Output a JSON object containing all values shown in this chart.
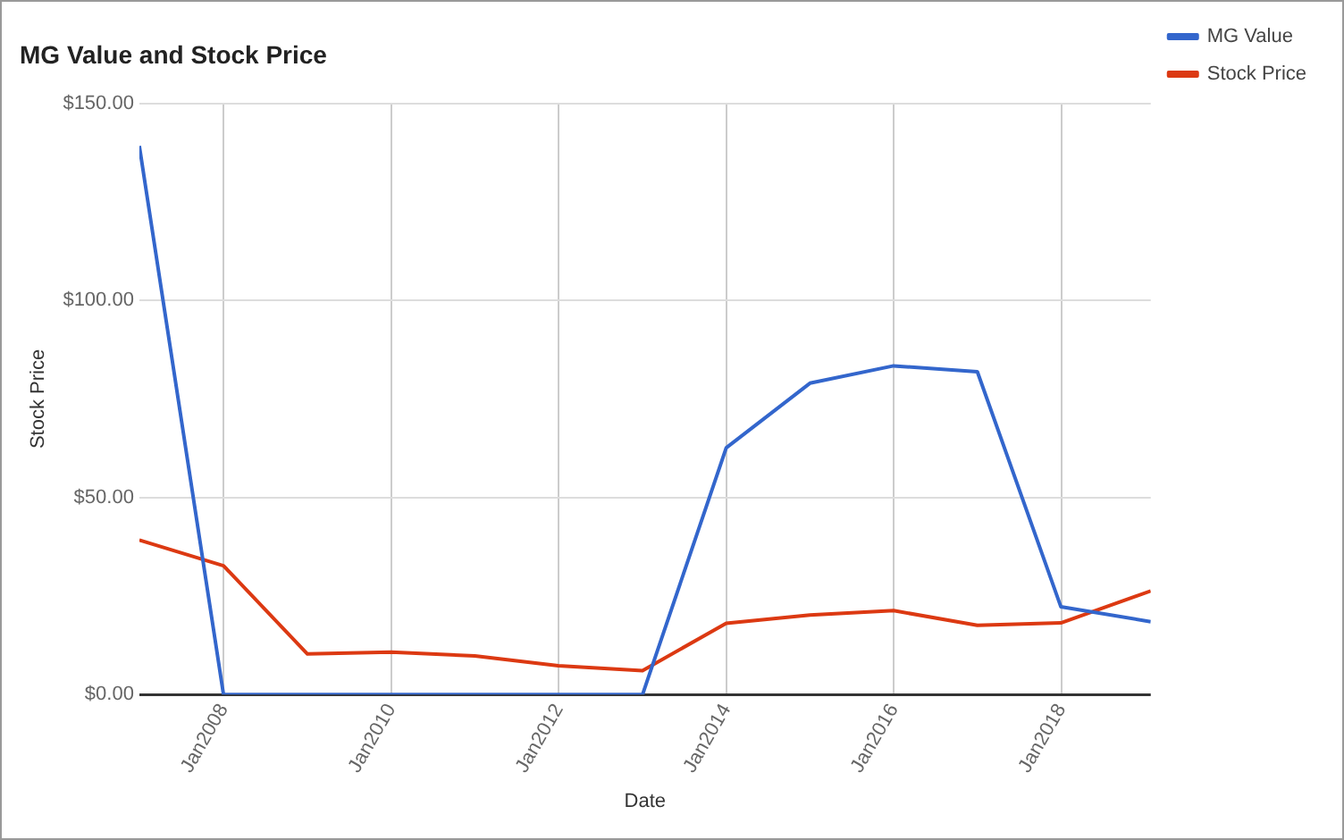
{
  "chart_data": {
    "type": "line",
    "title": "MG Value and Stock Price",
    "xlabel": "Date",
    "ylabel": "Stock Price",
    "x": [
      "2006-12-29",
      "2007-12-31",
      "2008-12-31",
      "2009-12-31",
      "2010-12-31",
      "2011-12-30",
      "2012-12-31",
      "2013-12-31",
      "2014-12-31",
      "2015-12-31",
      "2016-12-30",
      "2017-12-29",
      "2019-01-25"
    ],
    "series": [
      {
        "name": "MG Value",
        "color": "#3366cc",
        "values": [
          139.2,
          0,
          0,
          0,
          0,
          0,
          0,
          62.6,
          79.0,
          83.4,
          81.9,
          22.3,
          18.5
        ]
      },
      {
        "name": "Stock Price",
        "color": "#dc3912",
        "values": [
          39.2,
          32.7,
          10.3,
          10.8,
          9.8,
          7.3,
          6.1,
          18.1,
          20.2,
          21.3,
          17.6,
          18.2,
          26.3
        ]
      }
    ],
    "xlim": [
      "2006-12-29",
      "2019-01-25"
    ],
    "xticks": [
      {
        "value": "2008-01-01",
        "label": "Jan2008"
      },
      {
        "value": "2010-01-01",
        "label": "Jan2010"
      },
      {
        "value": "2012-01-01",
        "label": "Jan2012"
      },
      {
        "value": "2014-01-01",
        "label": "Jan2014"
      },
      {
        "value": "2016-01-01",
        "label": "Jan2016"
      },
      {
        "value": "2018-01-01",
        "label": "Jan2018"
      }
    ],
    "ylim": [
      0,
      150
    ],
    "yticks": [
      {
        "value": 0,
        "label": "$0.00"
      },
      {
        "value": 50,
        "label": "$50.00"
      },
      {
        "value": 100,
        "label": "$100.00"
      },
      {
        "value": 150,
        "label": "$150.00"
      }
    ],
    "grid": true,
    "legend": "top right",
    "marker": "none",
    "line_style": "solid"
  }
}
